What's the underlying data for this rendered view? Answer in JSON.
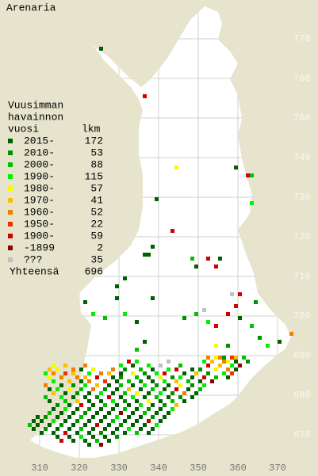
{
  "title": "Arenaria",
  "legend": {
    "header": [
      "Vuusimman",
      "havainnon",
      "vuosi"
    ],
    "count_header": "lkm",
    "rows": [
      {
        "label": "2015-",
        "count": 172,
        "color": "#006000"
      },
      {
        "label": "2010-",
        "count": 53,
        "color": "#009000"
      },
      {
        "label": "2000-",
        "count": 88,
        "color": "#00c000"
      },
      {
        "label": "1990-",
        "count": 115,
        "color": "#00f000"
      },
      {
        "label": "1980-",
        "count": 57,
        "color": "#f8f800"
      },
      {
        "label": "1970-",
        "count": 41,
        "color": "#f8c000"
      },
      {
        "label": "1960-",
        "count": 52,
        "color": "#f08000"
      },
      {
        "label": "1950-",
        "count": 22,
        "color": "#f03000"
      },
      {
        "label": "1900-",
        "count": 59,
        "color": "#d00000"
      },
      {
        "label": "-1899",
        "count": 2,
        "color": "#900000"
      },
      {
        "label": "???",
        "count": 35,
        "color": "#c0c0c0"
      }
    ],
    "total_label": "Yhteensä",
    "total": 696
  },
  "map": {
    "xticks": [
      310,
      320,
      330,
      340,
      350,
      360,
      370
    ],
    "yticks": [
      670,
      680,
      690,
      700,
      710,
      720,
      730,
      740,
      750,
      760,
      770
    ],
    "squares": [
      [
        325,
        767,
        0
      ],
      [
        336,
        755,
        8
      ],
      [
        344,
        737,
        4
      ],
      [
        359,
        737,
        0
      ],
      [
        362,
        735,
        8
      ],
      [
        363,
        735,
        2
      ],
      [
        363,
        728,
        3
      ],
      [
        339,
        729,
        0
      ],
      [
        343,
        721,
        8
      ],
      [
        338,
        717,
        0
      ],
      [
        337,
        715,
        0
      ],
      [
        336,
        715,
        0
      ],
      [
        348,
        714,
        2
      ],
      [
        352,
        714,
        8
      ],
      [
        355,
        714,
        0
      ],
      [
        354,
        712,
        8
      ],
      [
        349,
        712,
        0
      ],
      [
        331,
        709,
        0
      ],
      [
        329,
        707,
        0
      ],
      [
        329,
        704,
        0
      ],
      [
        338,
        704,
        0
      ],
      [
        358,
        705,
        10
      ],
      [
        360,
        705,
        8
      ],
      [
        359,
        702,
        8
      ],
      [
        364,
        703,
        1
      ],
      [
        321,
        703,
        0
      ],
      [
        323,
        700,
        3
      ],
      [
        326,
        699,
        2
      ],
      [
        331,
        700,
        3
      ],
      [
        334,
        698,
        0
      ],
      [
        336,
        693,
        0
      ],
      [
        334,
        691,
        2
      ],
      [
        346,
        699,
        1
      ],
      [
        351,
        701,
        10
      ],
      [
        357,
        700,
        8
      ],
      [
        352,
        698,
        3
      ],
      [
        354,
        697,
        8
      ],
      [
        349,
        700,
        2
      ],
      [
        360,
        699,
        0
      ],
      [
        363,
        697,
        2
      ],
      [
        365,
        694,
        1
      ],
      [
        367,
        692,
        3
      ],
      [
        370,
        693,
        0
      ],
      [
        373,
        695,
        6
      ],
      [
        354,
        692,
        4
      ],
      [
        357,
        692,
        1
      ],
      [
        352,
        689,
        6
      ],
      [
        354,
        689,
        4
      ],
      [
        355,
        689,
        6
      ],
      [
        356,
        689,
        1
      ],
      [
        358,
        689,
        7
      ],
      [
        359,
        689,
        5
      ],
      [
        361,
        689,
        2
      ],
      [
        351,
        688,
        3
      ],
      [
        353,
        688,
        5
      ],
      [
        356,
        688,
        6
      ],
      [
        357,
        688,
        4
      ],
      [
        359,
        688,
        0
      ],
      [
        362,
        688,
        1
      ],
      [
        332,
        688,
        8
      ],
      [
        334,
        688,
        3
      ],
      [
        342,
        688,
        10
      ],
      [
        313,
        687,
        4
      ],
      [
        316,
        687,
        5
      ],
      [
        321,
        687,
        6
      ],
      [
        330,
        687,
        3
      ],
      [
        333,
        687,
        0
      ],
      [
        337,
        687,
        3
      ],
      [
        340,
        687,
        10
      ],
      [
        345,
        687,
        2
      ],
      [
        352,
        687,
        8
      ],
      [
        355,
        687,
        5
      ],
      [
        358,
        687,
        3
      ],
      [
        360,
        687,
        9
      ],
      [
        312,
        686,
        5
      ],
      [
        314,
        686,
        4
      ],
      [
        318,
        686,
        6
      ],
      [
        320,
        686,
        0
      ],
      [
        323,
        686,
        4
      ],
      [
        328,
        686,
        6
      ],
      [
        331,
        686,
        1
      ],
      [
        335,
        686,
        2
      ],
      [
        338,
        686,
        0
      ],
      [
        342,
        686,
        3
      ],
      [
        344,
        686,
        8
      ],
      [
        348,
        686,
        0
      ],
      [
        350,
        686,
        1
      ],
      [
        354,
        686,
        4
      ],
      [
        357,
        686,
        6
      ],
      [
        359,
        686,
        0
      ],
      [
        311,
        685,
        3
      ],
      [
        313,
        685,
        6
      ],
      [
        316,
        685,
        7
      ],
      [
        318,
        685,
        5
      ],
      [
        322,
        685,
        3
      ],
      [
        325,
        685,
        6
      ],
      [
        327,
        685,
        5
      ],
      [
        330,
        685,
        0
      ],
      [
        333,
        685,
        4
      ],
      [
        336,
        685,
        1
      ],
      [
        339,
        685,
        3
      ],
      [
        341,
        685,
        8
      ],
      [
        346,
        685,
        0
      ],
      [
        349,
        685,
        5
      ],
      [
        352,
        685,
        1
      ],
      [
        356,
        685,
        3
      ],
      [
        358,
        685,
        7
      ],
      [
        312,
        684,
        4
      ],
      [
        315,
        684,
        6
      ],
      [
        319,
        684,
        6
      ],
      [
        321,
        684,
        5
      ],
      [
        324,
        684,
        8
      ],
      [
        328,
        684,
        0
      ],
      [
        330,
        684,
        1
      ],
      [
        334,
        684,
        2
      ],
      [
        337,
        684,
        0
      ],
      [
        340,
        684,
        4
      ],
      [
        343,
        684,
        1
      ],
      [
        345,
        684,
        3
      ],
      [
        348,
        684,
        0
      ],
      [
        351,
        684,
        8
      ],
      [
        354,
        684,
        2
      ],
      [
        357,
        684,
        0
      ],
      [
        313,
        683,
        3
      ],
      [
        317,
        683,
        5
      ],
      [
        320,
        683,
        0
      ],
      [
        322,
        683,
        6
      ],
      [
        326,
        683,
        7
      ],
      [
        329,
        683,
        0
      ],
      [
        332,
        683,
        2
      ],
      [
        335,
        683,
        1
      ],
      [
        338,
        683,
        0
      ],
      [
        341,
        683,
        3
      ],
      [
        344,
        683,
        5
      ],
      [
        347,
        683,
        2
      ],
      [
        350,
        683,
        0
      ],
      [
        353,
        683,
        9
      ],
      [
        311,
        682,
        6
      ],
      [
        315,
        682,
        0
      ],
      [
        318,
        682,
        1
      ],
      [
        321,
        682,
        3
      ],
      [
        324,
        682,
        5
      ],
      [
        327,
        682,
        0
      ],
      [
        330,
        682,
        2
      ],
      [
        333,
        682,
        0
      ],
      [
        336,
        682,
        3
      ],
      [
        339,
        682,
        1
      ],
      [
        342,
        682,
        0
      ],
      [
        345,
        682,
        4
      ],
      [
        348,
        682,
        1
      ],
      [
        351,
        682,
        3
      ],
      [
        312,
        681,
        0
      ],
      [
        314,
        681,
        3
      ],
      [
        317,
        681,
        4
      ],
      [
        320,
        681,
        2
      ],
      [
        323,
        681,
        6
      ],
      [
        326,
        681,
        1
      ],
      [
        329,
        681,
        0
      ],
      [
        332,
        681,
        5
      ],
      [
        335,
        681,
        0
      ],
      [
        338,
        681,
        2
      ],
      [
        341,
        681,
        0
      ],
      [
        344,
        681,
        8
      ],
      [
        347,
        681,
        0
      ],
      [
        350,
        681,
        2
      ],
      [
        313,
        680,
        5
      ],
      [
        316,
        680,
        0
      ],
      [
        319,
        680,
        1
      ],
      [
        322,
        680,
        0
      ],
      [
        325,
        680,
        3
      ],
      [
        328,
        680,
        0
      ],
      [
        331,
        680,
        2
      ],
      [
        334,
        680,
        4
      ],
      [
        337,
        680,
        0
      ],
      [
        340,
        680,
        3
      ],
      [
        343,
        680,
        1
      ],
      [
        346,
        680,
        6
      ],
      [
        349,
        680,
        0
      ],
      [
        311,
        679,
        2
      ],
      [
        315,
        679,
        3
      ],
      [
        318,
        679,
        0
      ],
      [
        321,
        679,
        0
      ],
      [
        324,
        679,
        1
      ],
      [
        327,
        679,
        8
      ],
      [
        330,
        679,
        0
      ],
      [
        333,
        679,
        3
      ],
      [
        336,
        679,
        0
      ],
      [
        339,
        679,
        2
      ],
      [
        342,
        679,
        0
      ],
      [
        345,
        679,
        1
      ],
      [
        348,
        679,
        0
      ],
      [
        312,
        678,
        0
      ],
      [
        316,
        678,
        2
      ],
      [
        319,
        678,
        5
      ],
      [
        322,
        678,
        0
      ],
      [
        325,
        678,
        0
      ],
      [
        328,
        678,
        3
      ],
      [
        331,
        678,
        1
      ],
      [
        334,
        678,
        0
      ],
      [
        337,
        678,
        4
      ],
      [
        340,
        678,
        0
      ],
      [
        343,
        678,
        2
      ],
      [
        346,
        678,
        0
      ],
      [
        314,
        677,
        1
      ],
      [
        317,
        677,
        0
      ],
      [
        320,
        677,
        8
      ],
      [
        323,
        677,
        0
      ],
      [
        326,
        677,
        2
      ],
      [
        329,
        677,
        0
      ],
      [
        332,
        677,
        0
      ],
      [
        335,
        677,
        3
      ],
      [
        338,
        677,
        0
      ],
      [
        341,
        677,
        1
      ],
      [
        344,
        677,
        5
      ],
      [
        313,
        676,
        0
      ],
      [
        316,
        676,
        3
      ],
      [
        319,
        676,
        0
      ],
      [
        322,
        676,
        1
      ],
      [
        325,
        676,
        0
      ],
      [
        328,
        676,
        0
      ],
      [
        331,
        676,
        2
      ],
      [
        334,
        676,
        0
      ],
      [
        337,
        676,
        1
      ],
      [
        340,
        676,
        0
      ],
      [
        343,
        676,
        3
      ],
      [
        312,
        675,
        2
      ],
      [
        315,
        675,
        0
      ],
      [
        318,
        675,
        0
      ],
      [
        321,
        675,
        1
      ],
      [
        324,
        675,
        0
      ],
      [
        327,
        675,
        0
      ],
      [
        330,
        675,
        9
      ],
      [
        333,
        675,
        0
      ],
      [
        336,
        675,
        2
      ],
      [
        339,
        675,
        0
      ],
      [
        342,
        675,
        0
      ],
      [
        309,
        674,
        0
      ],
      [
        311,
        674,
        1
      ],
      [
        314,
        674,
        0
      ],
      [
        317,
        674,
        0
      ],
      [
        320,
        674,
        2
      ],
      [
        323,
        674,
        0
      ],
      [
        326,
        674,
        0
      ],
      [
        329,
        674,
        3
      ],
      [
        332,
        674,
        0
      ],
      [
        335,
        674,
        0
      ],
      [
        338,
        674,
        1
      ],
      [
        341,
        674,
        0
      ],
      [
        308,
        673,
        0
      ],
      [
        310,
        673,
        0
      ],
      [
        313,
        673,
        3
      ],
      [
        316,
        673,
        0
      ],
      [
        319,
        673,
        1
      ],
      [
        322,
        673,
        0
      ],
      [
        325,
        673,
        0
      ],
      [
        328,
        673,
        2
      ],
      [
        331,
        673,
        0
      ],
      [
        334,
        673,
        0
      ],
      [
        337,
        673,
        8
      ],
      [
        340,
        673,
        0
      ],
      [
        307,
        672,
        2
      ],
      [
        309,
        672,
        0
      ],
      [
        312,
        672,
        0
      ],
      [
        315,
        672,
        1
      ],
      [
        318,
        672,
        0
      ],
      [
        321,
        672,
        0
      ],
      [
        324,
        672,
        8
      ],
      [
        327,
        672,
        0
      ],
      [
        330,
        672,
        1
      ],
      [
        333,
        672,
        0
      ],
      [
        336,
        672,
        0
      ],
      [
        339,
        672,
        3
      ],
      [
        308,
        671,
        0
      ],
      [
        311,
        671,
        1
      ],
      [
        314,
        671,
        0
      ],
      [
        317,
        671,
        0
      ],
      [
        320,
        671,
        2
      ],
      [
        323,
        671,
        0
      ],
      [
        326,
        671,
        0
      ],
      [
        329,
        671,
        0
      ],
      [
        332,
        671,
        3
      ],
      [
        335,
        671,
        0
      ],
      [
        338,
        671,
        0
      ],
      [
        310,
        670,
        0
      ],
      [
        313,
        670,
        0
      ],
      [
        316,
        670,
        8
      ],
      [
        319,
        670,
        0
      ],
      [
        322,
        670,
        0
      ],
      [
        325,
        670,
        1
      ],
      [
        328,
        670,
        0
      ],
      [
        331,
        670,
        0
      ],
      [
        334,
        670,
        2
      ],
      [
        337,
        670,
        0
      ],
      [
        314,
        669,
        0
      ],
      [
        317,
        669,
        0
      ],
      [
        320,
        669,
        3
      ],
      [
        323,
        669,
        0
      ],
      [
        326,
        669,
        0
      ],
      [
        329,
        669,
        1
      ],
      [
        315,
        668,
        8
      ],
      [
        318,
        668,
        0
      ],
      [
        321,
        668,
        0
      ],
      [
        324,
        668,
        2
      ],
      [
        327,
        668,
        0
      ],
      [
        322,
        667,
        0
      ],
      [
        325,
        667,
        9
      ]
    ]
  }
}
